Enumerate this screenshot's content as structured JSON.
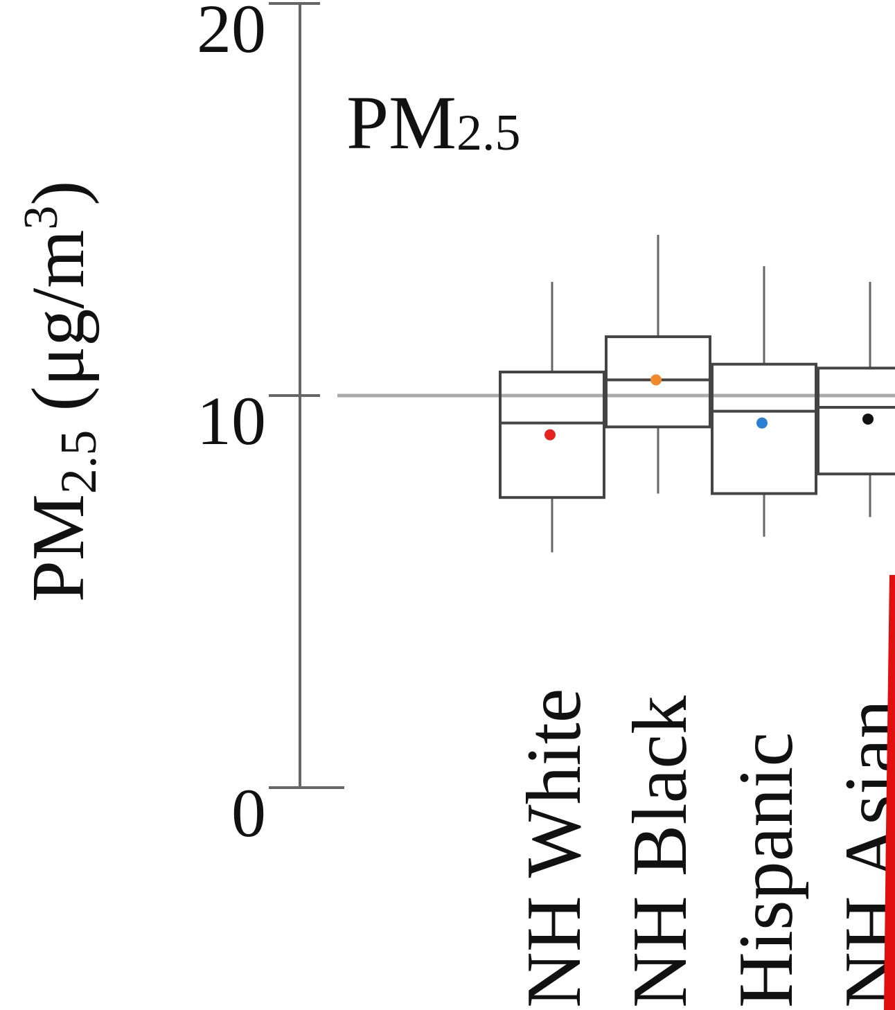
{
  "chart_data": {
    "type": "box",
    "panel_label": "PM",
    "panel_label_sub": "2.5",
    "ylabel_main": "PM",
    "ylabel_sub": "2.5",
    "ylabel_unit": " (μg/m",
    "ylabel_sup": "3",
    "ylabel_close": ")",
    "ylim": [
      0,
      20
    ],
    "yticks": [
      0,
      10,
      20
    ],
    "ytick_labels": [
      "0",
      "10",
      "20"
    ],
    "reference_line": 10,
    "categories": [
      "NH White",
      "NH Black",
      "Hispanic",
      "NH Asian"
    ],
    "boxes": [
      {
        "category": "NH White",
        "whisker_low": 6.0,
        "q1": 7.4,
        "median": 9.3,
        "q3": 10.6,
        "whisker_high": 12.9,
        "mean": 9.0,
        "mean_color": "#e8231f"
      },
      {
        "category": "NH Black",
        "whisker_low": 7.5,
        "q1": 9.2,
        "median": 10.4,
        "q3": 11.5,
        "whisker_high": 14.1,
        "mean": 10.4,
        "mean_color": "#f08a2c"
      },
      {
        "category": "Hispanic",
        "whisker_low": 6.4,
        "q1": 7.5,
        "median": 9.6,
        "q3": 10.8,
        "whisker_high": 13.3,
        "mean": 9.3,
        "mean_color": "#2a7fd4"
      },
      {
        "category": "NH Asian",
        "whisker_low": 6.9,
        "q1": 8.0,
        "median": 9.7,
        "q3": 10.7,
        "whisker_high": 12.9,
        "mean": 9.4,
        "mean_color": "#111111"
      }
    ],
    "colors": {
      "axis": "#666666",
      "box": "#444444",
      "reference": "#aaaaaa",
      "highlight": "#e01010"
    }
  }
}
